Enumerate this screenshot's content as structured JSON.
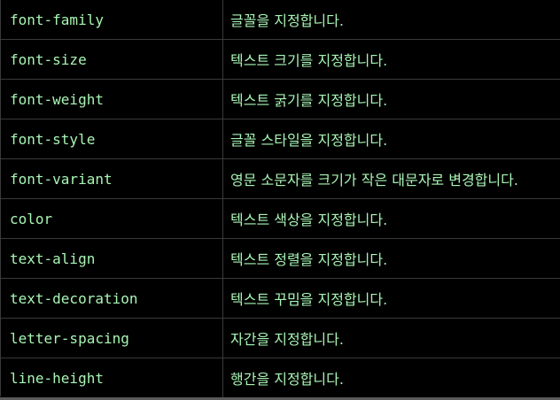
{
  "colors": {
    "background": "#000000",
    "text": "#a8f5b4",
    "border": "#3a3a3a"
  },
  "rows": [
    {
      "property": "font-family",
      "description": "글꼴을 지정합니다."
    },
    {
      "property": "font-size",
      "description": "텍스트 크기를 지정합니다."
    },
    {
      "property": "font-weight",
      "description": "텍스트 굵기를 지정합니다."
    },
    {
      "property": "font-style",
      "description": "글꼴 스타일을 지정합니다."
    },
    {
      "property": "font-variant",
      "description": "영문 소문자를 크기가 작은 대문자로 변경합니다."
    },
    {
      "property": "color",
      "description": "텍스트 색상을 지정합니다."
    },
    {
      "property": "text-align",
      "description": "텍스트 정렬을 지정합니다."
    },
    {
      "property": "text-decoration",
      "description": "텍스트 꾸밈을 지정합니다."
    },
    {
      "property": "letter-spacing",
      "description": "자간을 지정합니다."
    },
    {
      "property": "line-height",
      "description": "행간을 지정합니다."
    }
  ]
}
